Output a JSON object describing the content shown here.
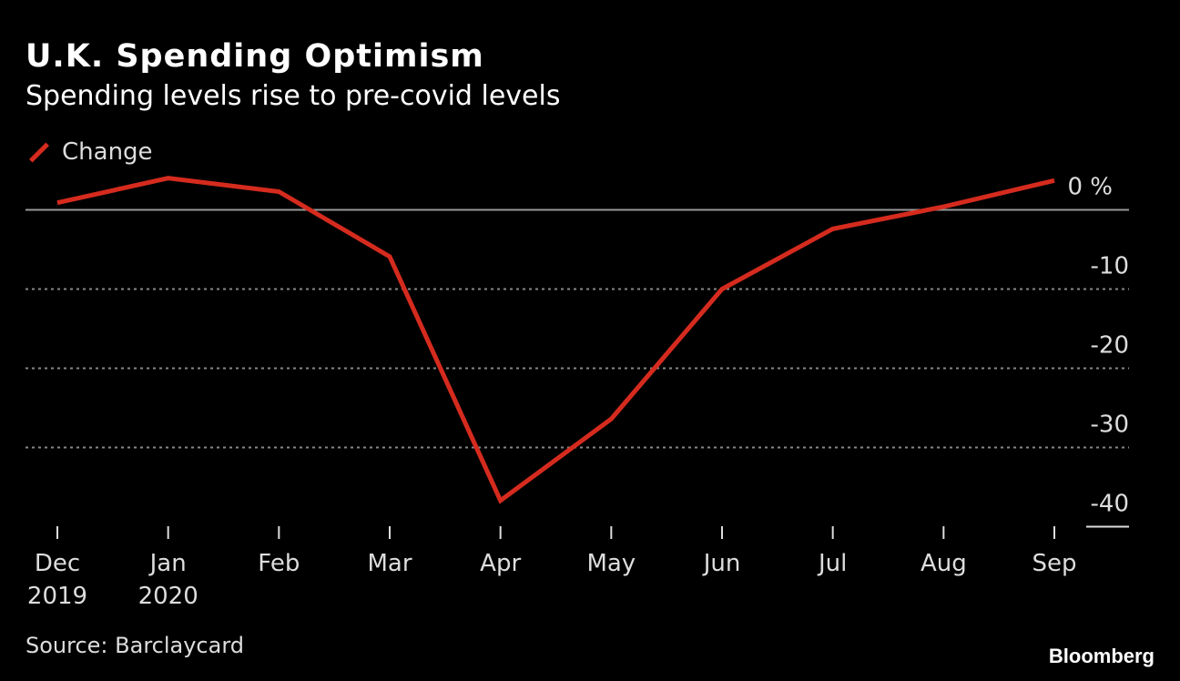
{
  "chart_data": {
    "type": "line",
    "title": "U.K. Spending Optimism",
    "subtitle": "Spending levels rise to pre-covid levels",
    "legend": [
      {
        "name": "Change",
        "color": "#d52b1e"
      }
    ],
    "legend_placement": "top-left",
    "categories": [
      "Dec 2019",
      "Jan 2020",
      "Feb",
      "Mar",
      "Apr",
      "May",
      "Jun",
      "Jul",
      "Aug",
      "Sep"
    ],
    "x_tick_labels": [
      [
        "Dec",
        "2019"
      ],
      [
        "Jan",
        "2020"
      ],
      [
        "Feb"
      ],
      [
        "Mar"
      ],
      [
        "Apr"
      ],
      [
        "May"
      ],
      [
        "Jun"
      ],
      [
        "Jul"
      ],
      [
        "Aug"
      ],
      [
        "Sep"
      ]
    ],
    "series": [
      {
        "name": "Change",
        "values": [
          0.9,
          4.0,
          2.3,
          -5.9,
          -36.7,
          -26.4,
          -10.0,
          -2.4,
          0.4,
          3.7
        ]
      }
    ],
    "y_ticks": [
      0,
      -10,
      -20,
      -30,
      -40
    ],
    "y_tick_labels": [
      "0 %",
      "-10",
      "-20",
      "-30",
      "-40"
    ],
    "ylim": [
      -40,
      5
    ],
    "grid": true,
    "xlabel": "",
    "ylabel": "%"
  },
  "source": "Source: Barclaycard",
  "brand": "Bloomberg"
}
